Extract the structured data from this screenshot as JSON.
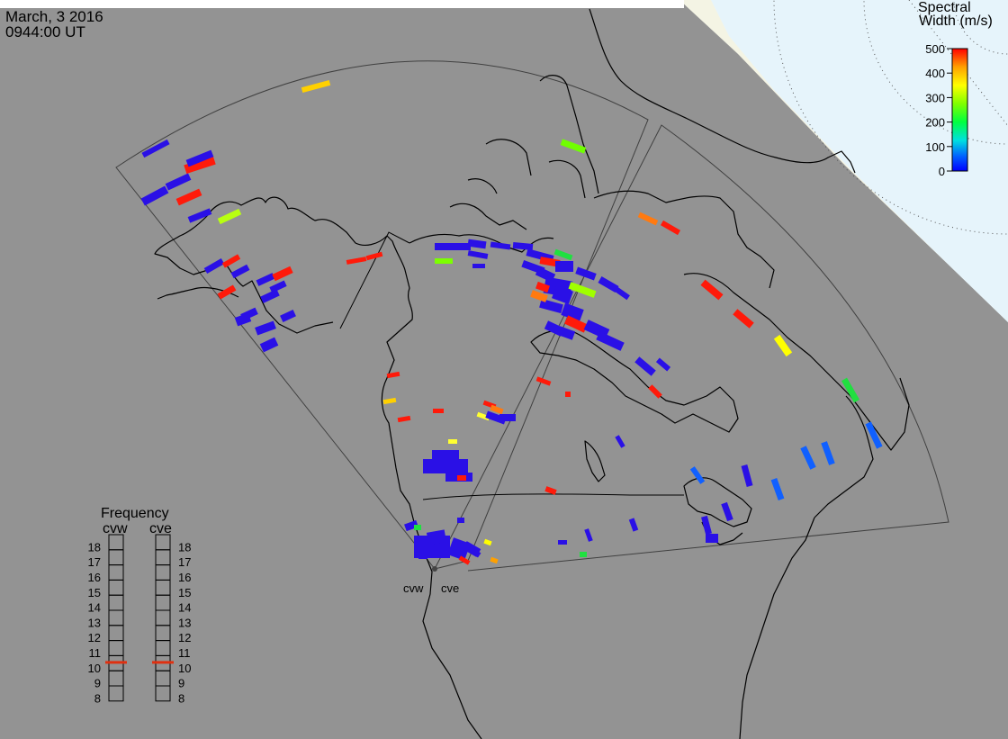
{
  "header": {
    "date": "March, 3 2016",
    "time": "0944:00 UT"
  },
  "colorbar": {
    "title_line1": "Spectral",
    "title_line2": "Width (m/s)",
    "ticks": [
      "500",
      "400",
      "300",
      "200",
      "100",
      "0"
    ],
    "colors": [
      "#0000ff",
      "#0080ff",
      "#00e0e0",
      "#00ff40",
      "#80ff00",
      "#ffff00",
      "#ffa000",
      "#ff4000",
      "#ff0000"
    ]
  },
  "radars": [
    {
      "id": "cvw",
      "label": "cvw"
    },
    {
      "id": "cve",
      "label": "cve"
    }
  ],
  "frequency": {
    "title": "Frequency",
    "left_label": "cvw",
    "right_label": "cve",
    "levels": [
      "18",
      "17",
      "16",
      "15",
      "14",
      "13",
      "12",
      "11",
      "10",
      "9",
      "8"
    ],
    "cvw_value": 10.5,
    "cve_value": 10.5
  },
  "colors": {
    "ocean": "#939393",
    "polar_ice": "#f4f4e4",
    "polar_cap": "#e6f4fb",
    "grid_line": "#303030",
    "coast": "#000000",
    "freq_marker": "#e03010"
  }
}
